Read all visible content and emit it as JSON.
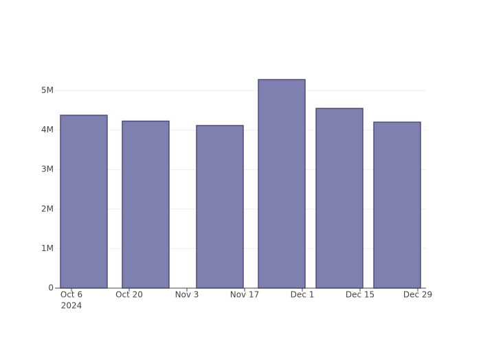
{
  "chart_data": {
    "type": "bar",
    "x": [
      "2024-10-09",
      "2024-10-24",
      "2024-11-11",
      "2024-11-26",
      "2024-12-10",
      "2024-12-24"
    ],
    "values": [
      4375000,
      4227000,
      4115000,
      5278000,
      4549000,
      4201000
    ],
    "color": "#7f7fb0",
    "line_color": "#4b4b82",
    "xlim": [
      "2024-10-02",
      "2024-12-31"
    ],
    "xticks": [
      {
        "value": "2024-10-06",
        "label": "Oct 6"
      },
      {
        "value": "2024-10-20",
        "label": "Oct 20"
      },
      {
        "value": "2024-11-03",
        "label": "Nov 3"
      },
      {
        "value": "2024-11-17",
        "label": "Nov 17"
      },
      {
        "value": "2024-12-01",
        "label": "Dec 1"
      },
      {
        "value": "2024-12-15",
        "label": "Dec 15"
      },
      {
        "value": "2024-12-29",
        "label": "Dec 29"
      }
    ],
    "x_year_label": "2024",
    "ylim": [
      0,
      5556000
    ],
    "yticks": [
      0,
      {
        "value": 1000000,
        "label": "1M"
      },
      {
        "value": 2000000,
        "label": "2M"
      },
      {
        "value": 3000000,
        "label": "3M"
      },
      {
        "value": 4000000,
        "label": "4M"
      },
      {
        "value": 5000000,
        "label": "5M"
      }
    ],
    "grid": true
  }
}
